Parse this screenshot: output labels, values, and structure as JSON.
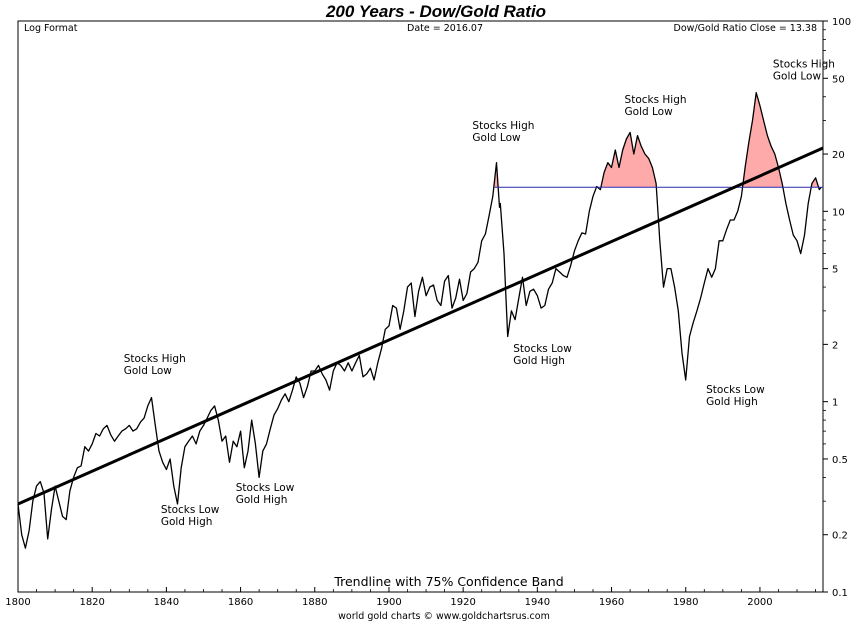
{
  "chart_data": {
    "type": "line",
    "title": "200 Years - Dow/Gold Ratio",
    "header_left": "Log Format",
    "header_center": "Date = 2016.07",
    "header_right": "Dow/Gold Ratio Close = 13.38",
    "subtitle": "Trendline with 75% Confidence Band",
    "footer": "world gold charts © www.goldchartsrus.com",
    "yscale": "log",
    "xlim": [
      1800,
      2017
    ],
    "ylim": [
      0.1,
      100
    ],
    "x_ticks": [
      1800,
      1820,
      1840,
      1860,
      1880,
      1900,
      1920,
      1940,
      1960,
      1980,
      2000
    ],
    "y_ticks": [
      {
        "value": 100,
        "label": "100"
      },
      {
        "value": 50,
        "label": "50"
      },
      {
        "value": 20,
        "label": "20"
      },
      {
        "value": 10,
        "label": "10"
      },
      {
        "value": 5,
        "label": "5"
      },
      {
        "value": 2,
        "label": "2"
      },
      {
        "value": 1,
        "label": "1"
      },
      {
        "value": 0.5,
        "label": "0.5"
      },
      {
        "value": 0.2,
        "label": "0.2"
      },
      {
        "value": 0.1,
        "label": "0.1"
      }
    ],
    "reference_line": {
      "value": 13.38,
      "from_year": 1928.5,
      "color": "#2a2ab0"
    },
    "trendline": {
      "start": [
        1800,
        0.29
      ],
      "end": [
        2017,
        21.5
      ]
    },
    "highlight_color": "#ffaaaa",
    "series": [
      {
        "name": "Dow/Gold Ratio",
        "points": [
          [
            1800,
            0.29
          ],
          [
            1801,
            0.2
          ],
          [
            1802,
            0.17
          ],
          [
            1803,
            0.21
          ],
          [
            1804,
            0.3
          ],
          [
            1805,
            0.36
          ],
          [
            1806,
            0.38
          ],
          [
            1807,
            0.33
          ],
          [
            1808,
            0.19
          ],
          [
            1809,
            0.27
          ],
          [
            1810,
            0.36
          ],
          [
            1811,
            0.3
          ],
          [
            1812,
            0.25
          ],
          [
            1813,
            0.24
          ],
          [
            1814,
            0.34
          ],
          [
            1815,
            0.4
          ],
          [
            1816,
            0.45
          ],
          [
            1817,
            0.46
          ],
          [
            1818,
            0.58
          ],
          [
            1819,
            0.55
          ],
          [
            1820,
            0.6
          ],
          [
            1821,
            0.68
          ],
          [
            1822,
            0.66
          ],
          [
            1823,
            0.72
          ],
          [
            1824,
            0.75
          ],
          [
            1825,
            0.67
          ],
          [
            1826,
            0.62
          ],
          [
            1827,
            0.66
          ],
          [
            1828,
            0.7
          ],
          [
            1829,
            0.72
          ],
          [
            1830,
            0.75
          ],
          [
            1831,
            0.7
          ],
          [
            1832,
            0.72
          ],
          [
            1833,
            0.78
          ],
          [
            1834,
            0.82
          ],
          [
            1835,
            0.95
          ],
          [
            1836,
            1.05
          ],
          [
            1837,
            0.75
          ],
          [
            1838,
            0.55
          ],
          [
            1839,
            0.48
          ],
          [
            1840,
            0.44
          ],
          [
            1841,
            0.5
          ],
          [
            1842,
            0.36
          ],
          [
            1843,
            0.29
          ],
          [
            1844,
            0.45
          ],
          [
            1845,
            0.58
          ],
          [
            1846,
            0.62
          ],
          [
            1847,
            0.66
          ],
          [
            1848,
            0.6
          ],
          [
            1849,
            0.7
          ],
          [
            1850,
            0.75
          ],
          [
            1851,
            0.82
          ],
          [
            1852,
            0.9
          ],
          [
            1853,
            0.95
          ],
          [
            1854,
            0.8
          ],
          [
            1855,
            0.62
          ],
          [
            1856,
            0.66
          ],
          [
            1857,
            0.48
          ],
          [
            1858,
            0.62
          ],
          [
            1859,
            0.58
          ],
          [
            1860,
            0.7
          ],
          [
            1861,
            0.45
          ],
          [
            1862,
            0.55
          ],
          [
            1863,
            0.8
          ],
          [
            1864,
            0.6
          ],
          [
            1865,
            0.4
          ],
          [
            1866,
            0.55
          ],
          [
            1867,
            0.6
          ],
          [
            1868,
            0.72
          ],
          [
            1869,
            0.85
          ],
          [
            1870,
            0.92
          ],
          [
            1871,
            1.02
          ],
          [
            1872,
            1.1
          ],
          [
            1873,
            1.0
          ],
          [
            1874,
            1.15
          ],
          [
            1875,
            1.35
          ],
          [
            1876,
            1.25
          ],
          [
            1877,
            1.05
          ],
          [
            1878,
            1.2
          ],
          [
            1879,
            1.45
          ],
          [
            1880,
            1.45
          ],
          [
            1881,
            1.55
          ],
          [
            1882,
            1.4
          ],
          [
            1883,
            1.3
          ],
          [
            1884,
            1.15
          ],
          [
            1885,
            1.45
          ],
          [
            1886,
            1.6
          ],
          [
            1887,
            1.55
          ],
          [
            1888,
            1.45
          ],
          [
            1889,
            1.6
          ],
          [
            1890,
            1.45
          ],
          [
            1891,
            1.6
          ],
          [
            1892,
            1.75
          ],
          [
            1893,
            1.35
          ],
          [
            1894,
            1.4
          ],
          [
            1895,
            1.5
          ],
          [
            1896,
            1.3
          ],
          [
            1897,
            1.6
          ],
          [
            1898,
            1.9
          ],
          [
            1899,
            2.4
          ],
          [
            1900,
            2.5
          ],
          [
            1901,
            3.2
          ],
          [
            1902,
            3.1
          ],
          [
            1903,
            2.4
          ],
          [
            1904,
            3.0
          ],
          [
            1905,
            4.0
          ],
          [
            1906,
            4.2
          ],
          [
            1907,
            2.8
          ],
          [
            1908,
            3.8
          ],
          [
            1909,
            4.5
          ],
          [
            1910,
            3.6
          ],
          [
            1911,
            4.0
          ],
          [
            1912,
            4.1
          ],
          [
            1913,
            3.4
          ],
          [
            1914,
            3.2
          ],
          [
            1915,
            4.3
          ],
          [
            1916,
            4.6
          ],
          [
            1917,
            3.1
          ],
          [
            1918,
            3.5
          ],
          [
            1919,
            4.4
          ],
          [
            1920,
            3.4
          ],
          [
            1921,
            3.7
          ],
          [
            1922,
            4.8
          ],
          [
            1923,
            5.0
          ],
          [
            1924,
            5.4
          ],
          [
            1925,
            7.0
          ],
          [
            1926,
            7.6
          ],
          [
            1927,
            9.5
          ],
          [
            1928,
            12.0
          ],
          [
            1929,
            18.0
          ],
          [
            1929.8,
            10.5
          ],
          [
            1930,
            11.0
          ],
          [
            1931,
            6.0
          ],
          [
            1932,
            2.2
          ],
          [
            1933,
            3.0
          ],
          [
            1934,
            2.7
          ],
          [
            1935,
            3.5
          ],
          [
            1936,
            4.5
          ],
          [
            1937,
            3.2
          ],
          [
            1938,
            3.8
          ],
          [
            1939,
            3.9
          ],
          [
            1940,
            3.6
          ],
          [
            1941,
            3.1
          ],
          [
            1942,
            3.2
          ],
          [
            1943,
            3.9
          ],
          [
            1944,
            4.2
          ],
          [
            1945,
            5.0
          ],
          [
            1946,
            4.8
          ],
          [
            1947,
            4.6
          ],
          [
            1948,
            4.5
          ],
          [
            1949,
            5.2
          ],
          [
            1950,
            6.2
          ],
          [
            1951,
            7.0
          ],
          [
            1952,
            7.7
          ],
          [
            1953,
            7.6
          ],
          [
            1954,
            10.0
          ],
          [
            1955,
            12.0
          ],
          [
            1956,
            13.5
          ],
          [
            1957,
            13.0
          ],
          [
            1958,
            16.0
          ],
          [
            1959,
            18.0
          ],
          [
            1960,
            17.0
          ],
          [
            1961,
            21.0
          ],
          [
            1962,
            17.0
          ],
          [
            1963,
            21.0
          ],
          [
            1964,
            24.0
          ],
          [
            1965,
            26.0
          ],
          [
            1966,
            20.0
          ],
          [
            1967,
            25.0
          ],
          [
            1968,
            22.0
          ],
          [
            1969,
            20.0
          ],
          [
            1970,
            19.0
          ],
          [
            1971,
            17.0
          ],
          [
            1972,
            14.0
          ],
          [
            1973,
            7.0
          ],
          [
            1974,
            4.0
          ],
          [
            1975,
            5.0
          ],
          [
            1976,
            5.0
          ],
          [
            1977,
            4.0
          ],
          [
            1978,
            3.0
          ],
          [
            1979,
            1.8
          ],
          [
            1980,
            1.3
          ],
          [
            1981,
            2.2
          ],
          [
            1982,
            2.6
          ],
          [
            1983,
            3.0
          ],
          [
            1984,
            3.5
          ],
          [
            1985,
            4.2
          ],
          [
            1986,
            5.0
          ],
          [
            1987,
            4.5
          ],
          [
            1988,
            5.0
          ],
          [
            1989,
            7.0
          ],
          [
            1990,
            7.0
          ],
          [
            1991,
            8.0
          ],
          [
            1992,
            9.0
          ],
          [
            1993,
            9.0
          ],
          [
            1994,
            10.0
          ],
          [
            1995,
            12.0
          ],
          [
            1996,
            17.0
          ],
          [
            1997,
            23.0
          ],
          [
            1998,
            30.0
          ],
          [
            1999,
            42.0
          ],
          [
            2000,
            36.0
          ],
          [
            2001,
            30.0
          ],
          [
            2002,
            25.0
          ],
          [
            2003,
            22.0
          ],
          [
            2004,
            20.0
          ],
          [
            2005,
            17.0
          ],
          [
            2006,
            14.0
          ],
          [
            2007,
            11.0
          ],
          [
            2008,
            9.0
          ],
          [
            2009,
            7.5
          ],
          [
            2010,
            7.0
          ],
          [
            2011,
            6.0
          ],
          [
            2012,
            7.5
          ],
          [
            2013,
            11.0
          ],
          [
            2014,
            14.0
          ],
          [
            2015,
            15.0
          ],
          [
            2016,
            13.0
          ],
          [
            2016.5,
            13.38
          ]
        ]
      }
    ],
    "annotations": [
      {
        "lines": [
          "Stocks High",
          "Gold Low"
        ],
        "x": 1828.5,
        "y": 1.62
      },
      {
        "lines": [
          "Stocks Low",
          "Gold High"
        ],
        "x": 1838.5,
        "y": 0.26
      },
      {
        "lines": [
          "Stocks Low",
          "Gold High"
        ],
        "x": 1858.7,
        "y": 0.34
      },
      {
        "lines": [
          "Stocks High",
          "Gold Low"
        ],
        "x": 1922.5,
        "y": 27.0
      },
      {
        "lines": [
          "Stocks Low",
          "Gold High"
        ],
        "x": 1933.5,
        "y": 1.82
      },
      {
        "lines": [
          "Stocks High",
          "Gold Low"
        ],
        "x": 1963.5,
        "y": 37.0
      },
      {
        "lines": [
          "Stocks Low",
          "Gold High"
        ],
        "x": 1985.5,
        "y": 1.11
      },
      {
        "lines": [
          "Stocks High",
          "Gold Low"
        ],
        "x": 2003.5,
        "y": 57.0
      }
    ]
  }
}
